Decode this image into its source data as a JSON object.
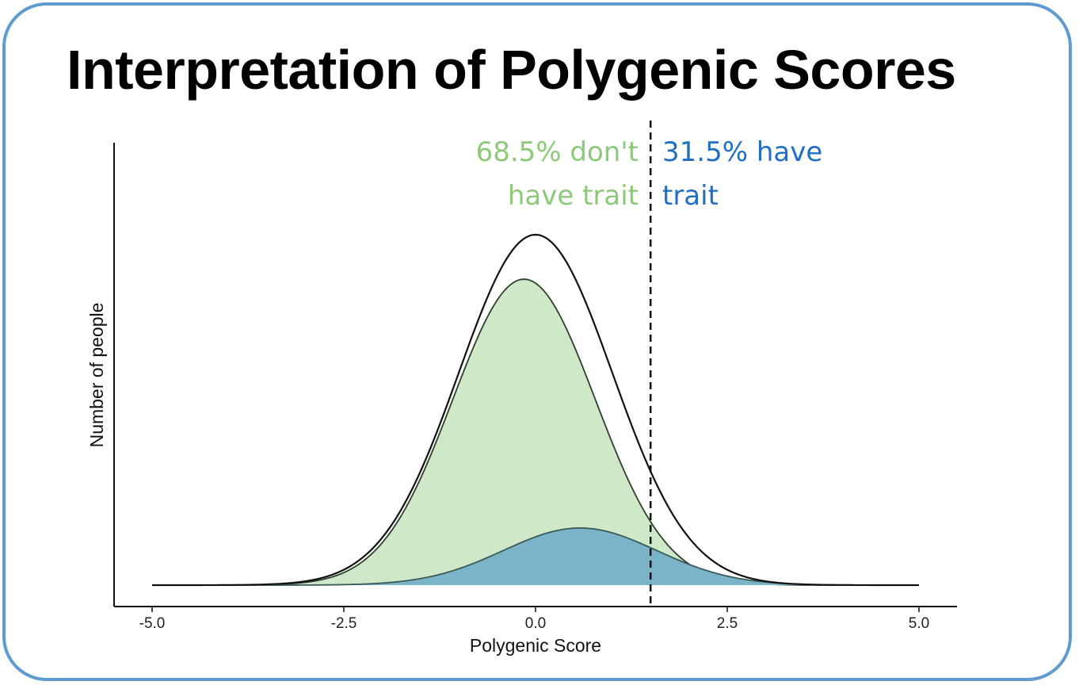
{
  "title": "Interpretation of Polygenic Scores",
  "chart_data": {
    "type": "area",
    "xlabel": "Polygenic Score",
    "ylabel": "Number of people",
    "xlim": [
      -5.0,
      5.0
    ],
    "xticks": [
      "-5.0",
      "-2.5",
      "0.0",
      "2.5",
      "5.0"
    ],
    "threshold": 1.5,
    "annotations": {
      "left_line1": "68.5% don't",
      "left_line2": "have trait",
      "right_line1": "31.5% have",
      "right_line2": "trait"
    },
    "series": [
      {
        "key": "total",
        "mean": 0.0,
        "sd": 1.0,
        "scale": 1.0,
        "fill": "none",
        "stroke": "#111111"
      },
      {
        "key": "no_trait",
        "mean": -0.15,
        "sd": 0.93,
        "scale": 0.873,
        "fill": "#cfe8c7",
        "stroke": "#2f3f2f"
      },
      {
        "key": "trait",
        "mean": 0.58,
        "sd": 1.0,
        "scale": 0.163,
        "fill": "#7bb3c8",
        "stroke": "#3a5a5a"
      }
    ],
    "colors": {
      "left_text": "#8cca7a",
      "right_text": "#1f6fc4"
    }
  }
}
